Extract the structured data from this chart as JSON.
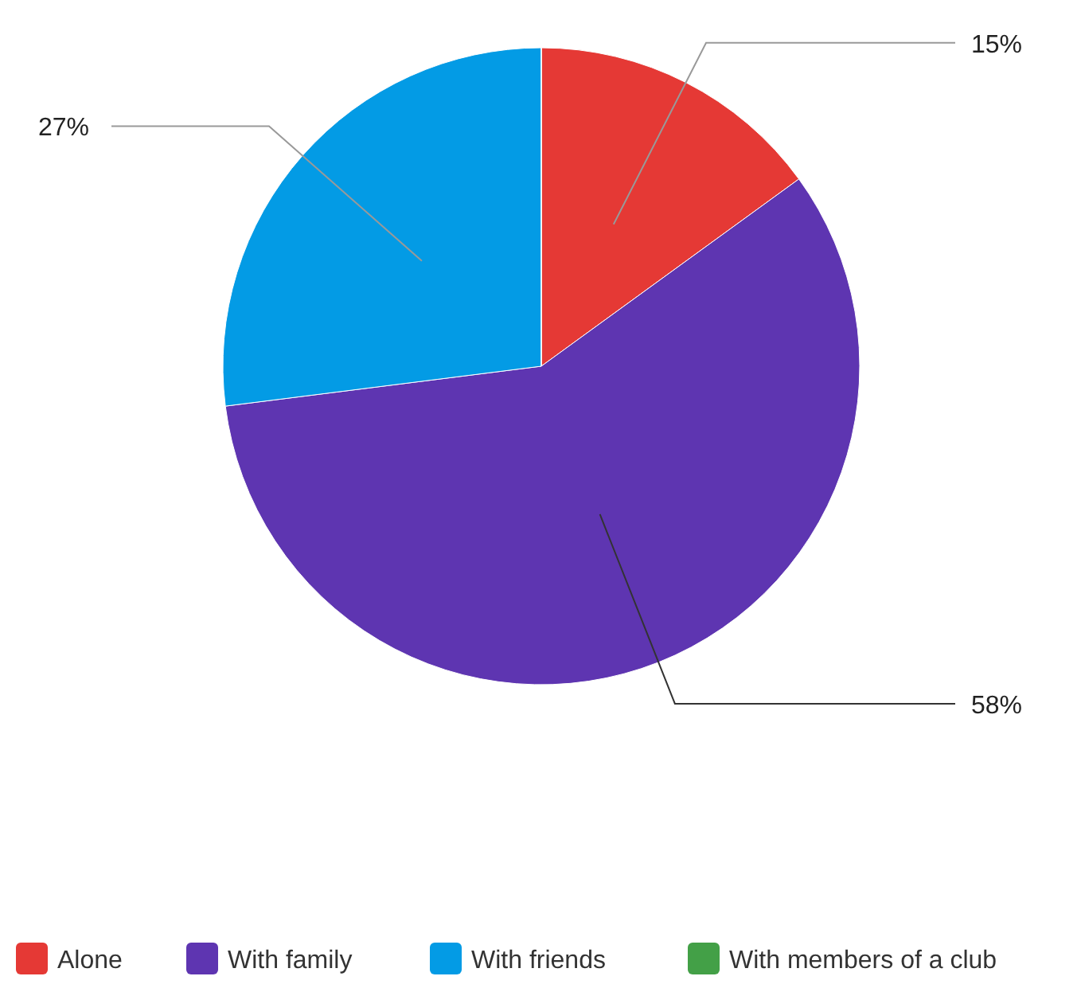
{
  "chart_data": {
    "type": "pie",
    "categories": [
      "Alone",
      "With family",
      "With friends",
      "With members of a club"
    ],
    "values": [
      15,
      58,
      27,
      0
    ],
    "colors": [
      "#e53935",
      "#5e35b1",
      "#039be5",
      "#43a047"
    ],
    "value_labels": [
      "15%",
      "58%",
      "27%",
      null
    ],
    "legend": "bottom"
  }
}
